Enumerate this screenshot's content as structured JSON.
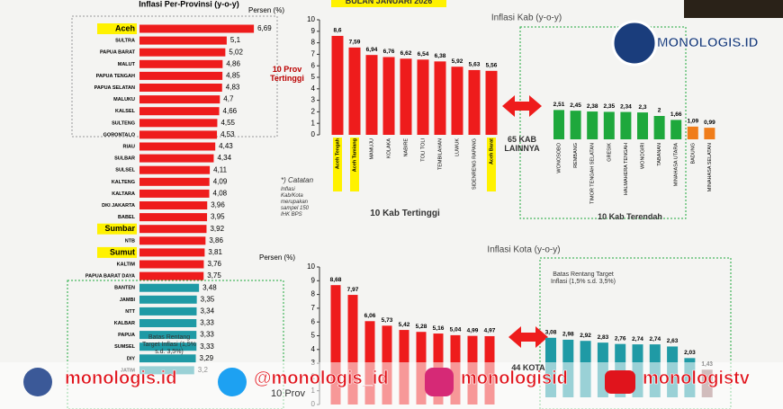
{
  "chart_data": [
    {
      "type": "hbar",
      "title": "Inflasi Per-Provinsi (y-o-y)",
      "value_axis_label": "Persen (%)",
      "categories": [
        "Aceh",
        "SULTRA",
        "PAPUA BARAT",
        "MALUT",
        "PAPUA TENGAH",
        "PAPUA SELATAN",
        "MALUKU",
        "KALSEL",
        "SULTENG",
        "GORONTALO",
        "RIAU",
        "SULBAR",
        "SULSEL",
        "KALTENG",
        "KALTARA",
        "DKI JAKARTA",
        "BABEL",
        "Sumbar",
        "NTB",
        "Sumut",
        "KALTIM",
        "PAPUA BARAT DAYA",
        "BANTEN",
        "JAMBI",
        "NTT",
        "KALBAR",
        "PAPUA",
        "SUMSEL",
        "DIY",
        "JATIM"
      ],
      "values": [
        6.69,
        5.1,
        5.02,
        4.86,
        4.85,
        4.83,
        4.7,
        4.66,
        4.55,
        4.53,
        4.43,
        4.34,
        4.11,
        4.09,
        4.08,
        3.96,
        3.95,
        3.92,
        3.86,
        3.81,
        3.76,
        3.75,
        3.48,
        3.35,
        3.34,
        3.33,
        3.33,
        3.33,
        3.29,
        3.2
      ],
      "value_labels": [
        "6,69",
        "5,1",
        "5,02",
        "4,86",
        "4,85",
        "4,83",
        "4,7",
        "4,66",
        "4,55",
        "4,53",
        "4,43",
        "4,34",
        "4,11",
        "4,09",
        "4,08",
        "3,96",
        "3,95",
        "3,92",
        "3,86",
        "3,81",
        "3,76",
        "3,75",
        "3,48",
        "3,35",
        "3,34",
        "3,33",
        "3,33",
        "3,33",
        "3,29",
        "3,2"
      ],
      "colors": [
        "#ee1c1c",
        "#ee1c1c",
        "#ee1c1c",
        "#ee1c1c",
        "#ee1c1c",
        "#ee1c1c",
        "#ee1c1c",
        "#ee1c1c",
        "#ee1c1c",
        "#ee1c1c",
        "#ee1c1c",
        "#ee1c1c",
        "#ee1c1c",
        "#ee1c1c",
        "#ee1c1c",
        "#ee1c1c",
        "#ee1c1c",
        "#ee1c1c",
        "#ee1c1c",
        "#ee1c1c",
        "#ee1c1c",
        "#ee1c1c",
        "#1f9aa5",
        "#1f9aa5",
        "#1f9aa5",
        "#1f9aa5",
        "#1f9aa5",
        "#1f9aa5",
        "#1f9aa5",
        "#1f9aa5"
      ],
      "highlighted": [
        0,
        17,
        19
      ],
      "highlight_color": "#fff200",
      "annotations": [
        "10 Prov Tertinggi",
        "Batas Rentang Target Inflasi (1,5% s.d. 3,5%)",
        "10 Prov"
      ]
    },
    {
      "type": "bar",
      "title": "Inflasi Kab (y-o-y)",
      "categories": [
        "Aceh Tengah",
        "Aceh Tamiang",
        "MAMUJU",
        "KOLAKA",
        "NABIRE",
        "TOLI TOLI",
        "TEMBILAHAN",
        "LUWUK",
        "SIDENRENG RAPANG",
        "Aceh Barat"
      ],
      "values": [
        8.6,
        7.59,
        6.94,
        6.76,
        6.62,
        6.54,
        6.38,
        5.92,
        5.63,
        5.56
      ],
      "value_labels": [
        "8,6",
        "7,59",
        "6,94",
        "6,76",
        "6,62",
        "6,54",
        "6,38",
        "5,92",
        "5,63",
        "5,56"
      ],
      "colors": [
        "#ee1c1c",
        "#ee1c1c",
        "#ee1c1c",
        "#ee1c1c",
        "#ee1c1c",
        "#ee1c1c",
        "#ee1c1c",
        "#ee1c1c",
        "#ee1c1c",
        "#ee1c1c"
      ],
      "highlighted": [
        0,
        1,
        9
      ],
      "highlight_color": "#fff200",
      "ylim": [
        0,
        10
      ],
      "yticks": [
        0,
        1,
        2,
        3,
        4,
        5,
        6,
        7,
        8,
        9,
        10
      ],
      "annotations": [
        "10 Kab Tertinggi",
        "*) Catatan",
        "Inflasi Kab/Kota merupakan sampel 150 IHK BPS",
        "BULAN JANUARI 2026"
      ]
    },
    {
      "type": "bar",
      "categories": [
        "WONOSOBO",
        "REMBANG",
        "TIMOR TENGAH SELATAN",
        "GRESIK",
        "HALMAHERA TENGAH",
        "WONOGIRI",
        "TABANAN",
        "MINAHASA UTARA",
        "BADUNG",
        "MINAHASA SELATAN"
      ],
      "values": [
        2.51,
        2.45,
        2.38,
        2.35,
        2.34,
        2.3,
        2,
        1.66,
        1.09,
        0.99
      ],
      "value_labels": [
        "2,51",
        "2,45",
        "2,38",
        "2,35",
        "2,34",
        "2,3",
        "2",
        "1,66",
        "1,09",
        "0,99"
      ],
      "colors": [
        "#1ea83c",
        "#1ea83c",
        "#1ea83c",
        "#1ea83c",
        "#1ea83c",
        "#1ea83c",
        "#1ea83c",
        "#1ea83c",
        "#f07d1a",
        "#f07d1a"
      ],
      "annotations": [
        "10 Kab Terendah",
        "65 KAB LAINNYA"
      ]
    },
    {
      "type": "bar",
      "title": "Inflasi Kota (y-o-y)",
      "value_axis_label": "Persen (%)",
      "categories": [
        null,
        null,
        null,
        null,
        null,
        null,
        null,
        null,
        null,
        null
      ],
      "values": [
        8.68,
        7.97,
        6.06,
        5.73,
        5.42,
        5.28,
        5.16,
        5.04,
        4.99,
        4.97
      ],
      "value_labels": [
        "8,68",
        "7,97",
        "6,06",
        "5,73",
        "5,42",
        "5,28",
        "5,16",
        "5,04",
        "4,99",
        "4,97"
      ],
      "colors": [
        "#ee1c1c",
        "#ee1c1c",
        "#ee1c1c",
        "#ee1c1c",
        "#ee1c1c",
        "#ee1c1c",
        "#ee1c1c",
        "#ee1c1c",
        "#ee1c1c",
        "#ee1c1c"
      ],
      "ylim": [
        0,
        10
      ],
      "yticks": [
        0,
        1,
        2,
        3,
        4,
        5,
        6,
        7,
        8,
        9,
        10
      ],
      "annotations": [
        "44 KOTA"
      ]
    },
    {
      "type": "bar",
      "categories": [
        null,
        null,
        null,
        null,
        null,
        null,
        null,
        null,
        null,
        null
      ],
      "values": [
        3.08,
        2.98,
        2.92,
        2.83,
        2.76,
        2.74,
        2.74,
        2.63,
        2.03,
        1.43
      ],
      "value_labels": [
        "3,08",
        "2,98",
        "2,92",
        "2,83",
        "2,76",
        "2,74",
        "2,74",
        "2,63",
        "2,03",
        "1,43"
      ],
      "colors": [
        "#1f9aa5",
        "#1f9aa5",
        "#1f9aa5",
        "#1f9aa5",
        "#1f9aa5",
        "#1f9aa5",
        "#1f9aa5",
        "#1f9aa5",
        "#1f9aa5",
        "#9a6a6a"
      ],
      "annotations": [
        "Batas Rentang Target Inflasi (1,5% s.d. 3,5%)"
      ]
    }
  ],
  "overlay": {
    "logo": "MONOLOGIS.ID",
    "social": [
      "monologis.id",
      "@monologis_id",
      "monologisid",
      "monologistv"
    ]
  }
}
